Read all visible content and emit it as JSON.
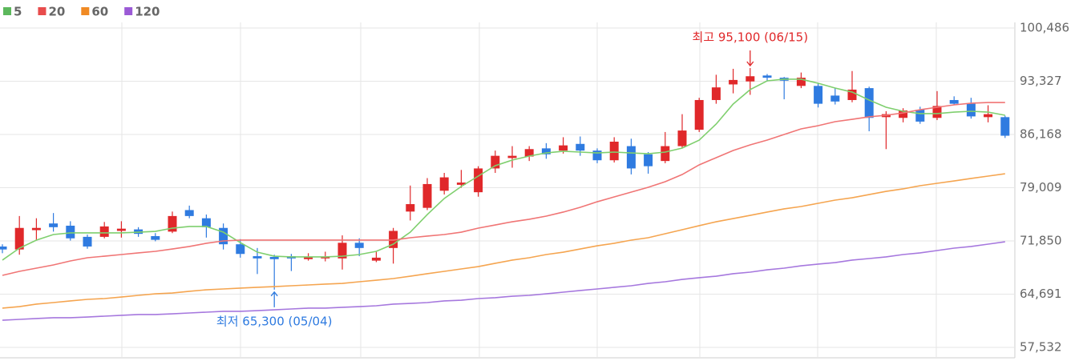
{
  "chart_data": {
    "type": "candlestick",
    "up_color": "#e0282a",
    "down_color": "#2f7be0",
    "open": [
      71100,
      70700,
      73300,
      74200,
      73900,
      72400,
      72400,
      73200,
      73400,
      72500,
      73100,
      76000,
      74900,
      73600,
      71400,
      69800,
      69700,
      69800,
      69400,
      69500,
      69500,
      71600,
      69200,
      70900,
      75800,
      76300,
      78600,
      79400,
      78400,
      81600,
      83000,
      83200,
      84300,
      84000,
      84900,
      84000,
      82700,
      84600,
      83500,
      82600,
      84600,
      86800,
      90800,
      92900,
      93300,
      94100,
      93800,
      92700,
      92700,
      91400,
      90800,
      92400,
      88500,
      88400,
      89500,
      88400,
      90800,
      90300,
      88500,
      88500
    ],
    "high": [
      71400,
      75200,
      74900,
      75600,
      74500,
      72700,
      74400,
      74500,
      73700,
      72900,
      75800,
      76600,
      75400,
      74200,
      72100,
      70900,
      70000,
      70100,
      70200,
      70400,
      72600,
      72200,
      70500,
      73600,
      79300,
      80300,
      81000,
      81400,
      81900,
      84000,
      84600,
      84600,
      85000,
      85800,
      85900,
      84300,
      85800,
      85600,
      83800,
      86500,
      88900,
      91100,
      94200,
      95000,
      95100,
      94300,
      93900,
      94500,
      93100,
      92400,
      94700,
      92600,
      89300,
      89700,
      89900,
      92000,
      91300,
      91100,
      90100,
      88700
    ],
    "low": [
      70200,
      70000,
      72000,
      73100,
      71900,
      70800,
      72200,
      72300,
      72400,
      71800,
      72900,
      74900,
      72300,
      70700,
      69600,
      67400,
      65300,
      67800,
      69200,
      69100,
      68000,
      69800,
      69000,
      68800,
      74600,
      76000,
      78100,
      79000,
      77800,
      81000,
      81700,
      82600,
      82900,
      83600,
      83300,
      82300,
      82400,
      80800,
      80900,
      82300,
      84300,
      86500,
      90300,
      91700,
      91500,
      93300,
      90900,
      92400,
      89800,
      90200,
      90500,
      86600,
      84200,
      87800,
      87600,
      88100,
      90100,
      88300,
      87800,
      85700
    ],
    "close": [
      70700,
      73600,
      73600,
      73700,
      72200,
      71100,
      73800,
      73500,
      72800,
      72000,
      75200,
      75200,
      73700,
      71400,
      70100,
      69500,
      69400,
      69500,
      69700,
      69700,
      71600,
      70900,
      69600,
      73200,
      76800,
      79500,
      80400,
      79700,
      81600,
      83300,
      83300,
      84200,
      83500,
      84700,
      84000,
      82700,
      85200,
      81600,
      81900,
      84600,
      86700,
      90800,
      92500,
      93500,
      94000,
      93800,
      93400,
      93800,
      90300,
      90600,
      92200,
      88400,
      88900,
      89400,
      87900,
      90000,
      90300,
      88600,
      88900,
      86000
    ],
    "series": [
      {
        "name": "5",
        "color": "#5cb85c",
        "line_color": "#7fcf6e",
        "values": [
          69270,
          70880,
          71960,
          72710,
          72930,
          72930,
          72930,
          72930,
          73030,
          73140,
          73570,
          73790,
          73790,
          73030,
          71630,
          70340,
          69800,
          69700,
          69700,
          69700,
          69800,
          70020,
          70450,
          71420,
          73030,
          75400,
          77560,
          79170,
          80570,
          81970,
          82720,
          83260,
          83690,
          83910,
          83800,
          83690,
          83800,
          83690,
          83580,
          83800,
          84340,
          85410,
          87570,
          90260,
          92200,
          93380,
          93600,
          93600,
          93060,
          92410,
          91870,
          90800,
          89830,
          89290,
          88970,
          88970,
          89180,
          89290,
          89180,
          88750
        ]
      },
      {
        "name": "20",
        "color": "#e84c4c",
        "line_color": "#f07575",
        "values": [
          67220,
          67760,
          68190,
          68620,
          69160,
          69590,
          69800,
          70020,
          70240,
          70450,
          70770,
          71100,
          71530,
          71850,
          71960,
          71960,
          71960,
          71960,
          71960,
          71960,
          71960,
          71960,
          71960,
          71960,
          72280,
          72500,
          72710,
          73030,
          73570,
          74000,
          74430,
          74760,
          75190,
          75730,
          76370,
          77120,
          77770,
          78420,
          79060,
          79820,
          80780,
          82080,
          83050,
          84010,
          84770,
          85410,
          86170,
          86920,
          87350,
          87890,
          88210,
          88540,
          88750,
          89070,
          89500,
          89830,
          90150,
          90370,
          90470,
          90470
        ]
      },
      {
        "name": "60",
        "color": "#f08a24",
        "line_color": "#f5a550",
        "values": [
          62810,
          63020,
          63350,
          63560,
          63780,
          63990,
          64100,
          64310,
          64530,
          64740,
          64850,
          65070,
          65280,
          65390,
          65500,
          65610,
          65710,
          65820,
          65930,
          66040,
          66140,
          66360,
          66570,
          66790,
          67110,
          67440,
          67760,
          68080,
          68400,
          68840,
          69270,
          69590,
          70020,
          70340,
          70770,
          71200,
          71530,
          71960,
          72280,
          72820,
          73360,
          73900,
          74430,
          74860,
          75290,
          75730,
          76160,
          76480,
          76910,
          77340,
          77660,
          78090,
          78520,
          78850,
          79280,
          79600,
          79920,
          80250,
          80570,
          80890
        ]
      },
      {
        "name": "120",
        "color": "#9b5ad6",
        "line_color": "#a678de",
        "values": [
          61190,
          61300,
          61410,
          61520,
          61520,
          61620,
          61730,
          61840,
          61950,
          61950,
          62050,
          62160,
          62270,
          62380,
          62380,
          62480,
          62590,
          62700,
          62810,
          62810,
          62920,
          63020,
          63130,
          63350,
          63450,
          63560,
          63780,
          63880,
          64100,
          64210,
          64420,
          64530,
          64740,
          64960,
          65180,
          65390,
          65610,
          65820,
          66140,
          66360,
          66680,
          66900,
          67110,
          67440,
          67650,
          67970,
          68190,
          68510,
          68730,
          68940,
          69270,
          69480,
          69700,
          70020,
          70240,
          70560,
          70880,
          71100,
          71420,
          71740
        ]
      }
    ],
    "ylim": [
      57532,
      100486
    ],
    "yticks": [
      {
        "value": 100486,
        "label": "100,486"
      },
      {
        "value": 93327,
        "label": "93,327"
      },
      {
        "value": 86168,
        "label": "86,168"
      },
      {
        "value": 79009,
        "label": "79,009"
      },
      {
        "value": 71850,
        "label": "71,850"
      },
      {
        "value": 64691,
        "label": "64,691"
      },
      {
        "value": 57532,
        "label": "57,532"
      }
    ],
    "grid": true,
    "annotations": [
      {
        "text": "최고 95,100 (06/15)",
        "color": "#e0282a"
      },
      {
        "text": "최저 65,300 (05/04)",
        "color": "#2f7be0"
      }
    ]
  }
}
